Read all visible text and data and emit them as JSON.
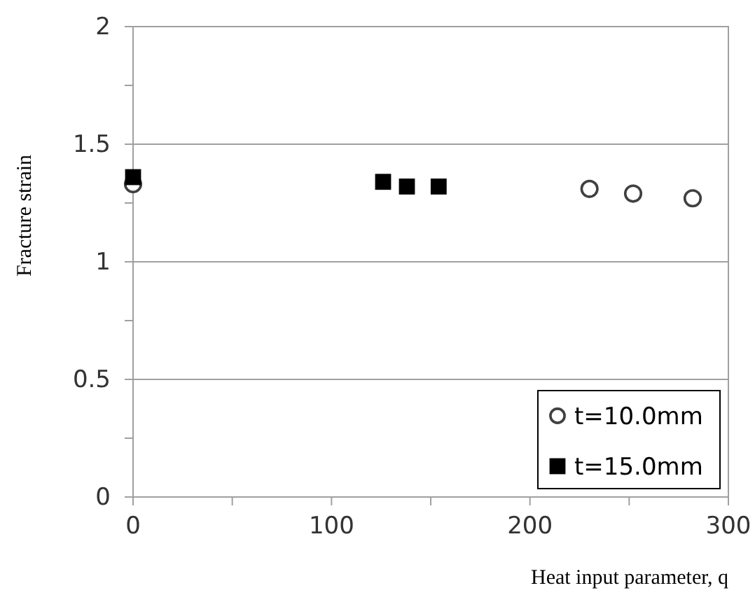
{
  "chart_data": {
    "type": "scatter",
    "xlabel": "Heat input parameter, q",
    "ylabel": "Fracture strain",
    "xlim": [
      0,
      300
    ],
    "xticks": [
      0,
      {
        "value": 50,
        "label": null
      },
      100,
      {
        "value": 150,
        "label": null
      },
      200,
      {
        "value": 250,
        "label": null
      },
      300
    ],
    "ylim": [
      0,
      2
    ],
    "yticks": [
      0,
      {
        "value": 0.25,
        "label": null
      },
      0.5,
      {
        "value": 0.75,
        "label": null
      },
      1,
      {
        "value": 1.25,
        "label": null
      },
      1.5,
      {
        "value": 1.75,
        "label": null
      },
      2
    ],
    "grid": "y",
    "legend": "bottom right",
    "series": [
      {
        "name": "t=10.0mm",
        "color": "#404040",
        "marker": "circle",
        "x": [
          0,
          230,
          252,
          282
        ],
        "values": [
          1.33,
          1.31,
          1.29,
          1.27
        ]
      },
      {
        "name": "t=15.0mm",
        "color": "#000000",
        "marker": "square",
        "x": [
          0,
          126,
          138,
          154
        ],
        "values": [
          1.36,
          1.34,
          1.32,
          1.32
        ]
      }
    ]
  }
}
